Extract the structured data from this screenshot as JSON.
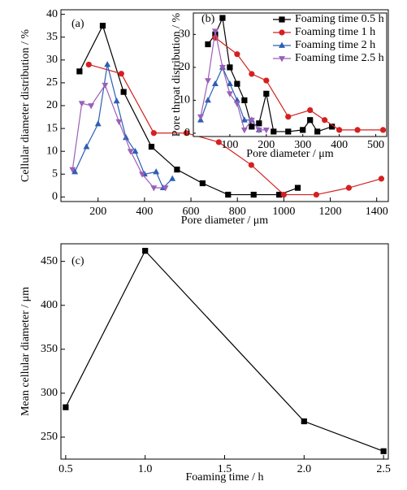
{
  "chart_data": [
    {
      "type": "line",
      "annotation": "(a)",
      "x_label": "Pore diameter / μm",
      "y_label": "Cellular diameter distribution / %",
      "xlim": [
        40,
        1450
      ],
      "ylim": [
        -1,
        41
      ],
      "xticks": [
        200,
        400,
        600,
        800,
        1000,
        1200,
        1400
      ],
      "yticks": [
        0,
        5,
        10,
        15,
        20,
        25,
        30,
        35,
        40
      ],
      "series": [
        {
          "name": "Foaming time 0.5 h",
          "color": "#000000",
          "marker": "square",
          "x": [
            120,
            220,
            310,
            430,
            540,
            650,
            760,
            870,
            980,
            1060
          ],
          "values": [
            27.5,
            37.5,
            23,
            11,
            6,
            3,
            0.5,
            0.5,
            0.5,
            2
          ]
        },
        {
          "name": "Foaming time 1 h",
          "color": "#d42020",
          "marker": "circle",
          "x": [
            160,
            300,
            440,
            580,
            720,
            860,
            1000,
            1140,
            1280,
            1420
          ],
          "values": [
            29,
            27,
            14,
            14,
            12,
            7,
            0.5,
            0.5,
            2,
            4
          ]
        },
        {
          "name": "Foaming time 2 h",
          "color": "#2c5fb4",
          "marker": "triangle-up",
          "x": [
            100,
            150,
            200,
            240,
            280,
            320,
            360,
            400,
            450,
            480,
            520
          ],
          "values": [
            5.5,
            11,
            16,
            29,
            21,
            13,
            10,
            5,
            5.5,
            2,
            4
          ]
        },
        {
          "name": "Foaming time 2.5 h",
          "color": "#9b5fb8",
          "marker": "triangle-down",
          "x": [
            90,
            130,
            170,
            230,
            290,
            340,
            390,
            440,
            490
          ],
          "values": [
            6,
            20.5,
            20,
            24.5,
            16.5,
            10,
            5,
            2,
            2
          ]
        }
      ]
    },
    {
      "type": "line",
      "annotation": "(b)",
      "legend": "upper right",
      "x_label": "Pore diameter / μm",
      "y_label": "Pore throat distribution / %",
      "xlim": [
        0,
        530
      ],
      "ylim": [
        -1,
        36.5
      ],
      "xticks": [
        100,
        200,
        300,
        400,
        500
      ],
      "yticks": [
        0,
        10,
        20,
        30
      ],
      "series": [
        {
          "name": "Foaming time 0.5 h",
          "color": "#000000",
          "marker": "square",
          "x": [
            40,
            60,
            80,
            100,
            120,
            140,
            160,
            180,
            200,
            220,
            260,
            300,
            320,
            340,
            380
          ],
          "values": [
            27,
            30,
            35,
            20,
            15,
            10,
            2,
            3,
            12,
            0.5,
            0.5,
            1,
            4,
            0.5,
            2
          ]
        },
        {
          "name": "Foaming time 1 h",
          "color": "#d42020",
          "marker": "circle",
          "x": [
            60,
            120,
            160,
            200,
            260,
            320,
            360,
            400,
            450,
            520
          ],
          "values": [
            29,
            24,
            18,
            16,
            5,
            7,
            4,
            1,
            1,
            1
          ]
        },
        {
          "name": "Foaming time 2 h",
          "color": "#2c5fb4",
          "marker": "triangle-up",
          "x": [
            20,
            40,
            60,
            80,
            100,
            120,
            140,
            160,
            180
          ],
          "values": [
            4,
            10,
            15,
            20,
            15,
            10,
            4,
            4,
            1
          ]
        },
        {
          "name": "Foaming time 2.5 h",
          "color": "#9b5fb8",
          "marker": "triangle-down",
          "x": [
            20,
            40,
            60,
            80,
            100,
            120,
            140,
            160,
            180,
            200
          ],
          "values": [
            5,
            16,
            31,
            20,
            12,
            9,
            1,
            4,
            1,
            1
          ]
        }
      ]
    },
    {
      "type": "line",
      "annotation": "(c)",
      "x_label": "Foaming time / h",
      "y_label": "Mean cellular diameter / μm",
      "xlim": [
        0.47,
        2.53
      ],
      "ylim": [
        225,
        470
      ],
      "xticks": [
        0.5,
        {
          "value": 1,
          "label": "1.0"
        },
        1.5,
        {
          "value": 2,
          "label": "2.0"
        },
        2.5
      ],
      "yticks": [
        250,
        300,
        350,
        400,
        450
      ],
      "series": [
        {
          "color": "#000000",
          "marker": "square",
          "x": [
            0.5,
            1,
            2,
            2.5
          ],
          "values": [
            284,
            462,
            268,
            234
          ]
        }
      ]
    }
  ]
}
